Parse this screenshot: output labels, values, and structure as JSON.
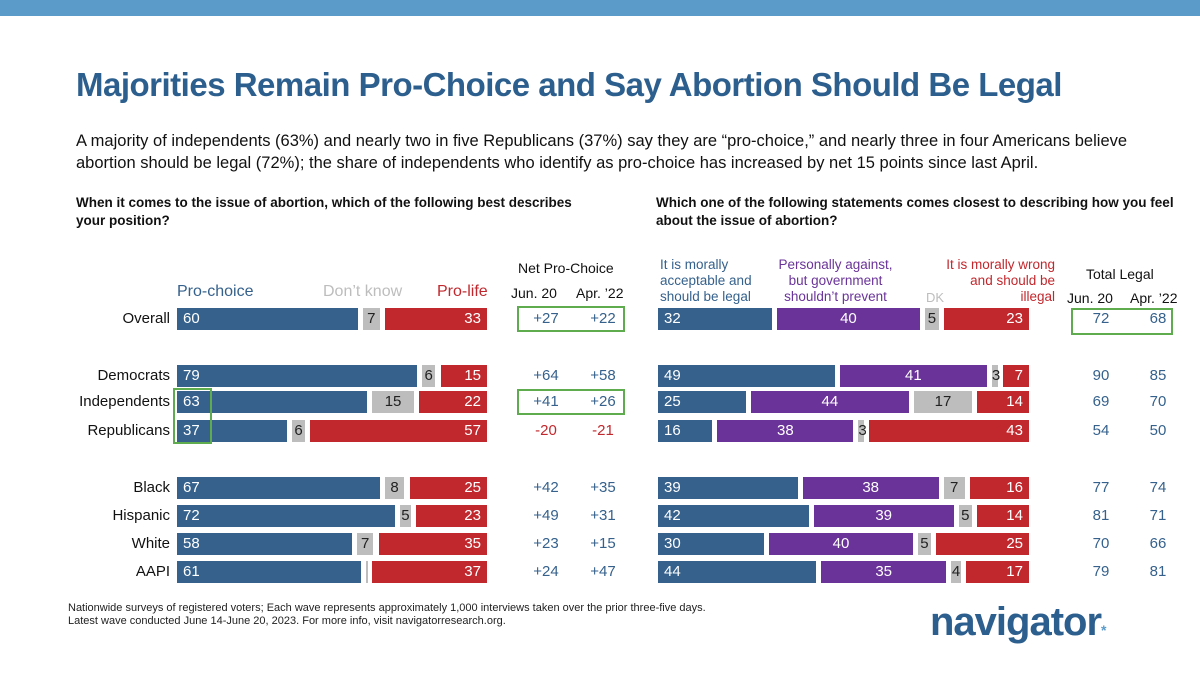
{
  "title": "Majorities Remain Pro-Choice and Say Abortion Should Be Legal",
  "subtitle": "A majority of independents (63%) and nearly two in five Republicans (37%) say they are “pro-choice,” and nearly three in four Americans believe abortion should be legal (72%); the share of independents who identify as pro-choice has increased by net 15 points since last April.",
  "colors": {
    "blue": "#35618c",
    "gray": "#bdbdbd",
    "red": "#c0282d",
    "purple": "#6a3399",
    "green_highlight": "#5fac4e",
    "title": "#2d5f8e",
    "topbar": "#5b9bc9"
  },
  "chart_data": [
    {
      "type": "bar",
      "stacked": true,
      "orientation": "horizontal",
      "question": "When it comes to the issue of abortion, which of the following best describes your position?",
      "legend": [
        "Pro-choice",
        "Don’t know",
        "Pro-life"
      ],
      "net_header": "Net Pro-Choice",
      "net_columns": [
        "Jun. 20",
        "Apr. ’22"
      ],
      "categories": [
        "Overall",
        "Democrats",
        "Independents",
        "Republicans",
        "Black",
        "Hispanic",
        "White",
        "AAPI"
      ],
      "series": [
        {
          "name": "Pro-choice",
          "values": [
            60,
            79,
            63,
            37,
            67,
            72,
            58,
            61
          ]
        },
        {
          "name": "Don’t know",
          "values": [
            7,
            6,
            15,
            6,
            8,
            5,
            7,
            2
          ]
        },
        {
          "name": "Pro-life",
          "values": [
            33,
            15,
            22,
            57,
            25,
            23,
            35,
            37
          ]
        }
      ],
      "net": {
        "jun20": [
          "+27",
          "+64",
          "+41",
          "-20",
          "+42",
          "+49",
          "+23",
          "+24"
        ],
        "apr22": [
          "+22",
          "+58",
          "+26",
          "-21",
          "+35",
          "+31",
          "+15",
          "+47"
        ]
      }
    },
    {
      "type": "bar",
      "stacked": true,
      "orientation": "horizontal",
      "question": "Which one of the following statements comes closest to describing how you feel about the issue of abortion?",
      "legend": [
        "It is morally acceptable and should be legal",
        "Personally against, but government shouldn’t prevent",
        "DK",
        "It is morally wrong and should be illegal"
      ],
      "total_header": "Total Legal",
      "total_columns": [
        "Jun. 20",
        "Apr. ’22"
      ],
      "categories": [
        "Overall",
        "Democrats",
        "Independents",
        "Republicans",
        "Black",
        "Hispanic",
        "White",
        "AAPI"
      ],
      "series": [
        {
          "name": "It is morally acceptable and should be legal",
          "values": [
            32,
            49,
            25,
            16,
            39,
            42,
            30,
            44
          ]
        },
        {
          "name": "Personally against, but government shouldn’t prevent",
          "values": [
            40,
            41,
            44,
            38,
            38,
            39,
            40,
            35
          ]
        },
        {
          "name": "DK",
          "values": [
            5,
            3,
            17,
            3,
            7,
            5,
            5,
            4
          ]
        },
        {
          "name": "It is morally wrong and should be illegal",
          "values": [
            23,
            7,
            14,
            43,
            16,
            14,
            25,
            17
          ]
        }
      ],
      "total": {
        "jun20": [
          "72",
          "90",
          "69",
          "54",
          "77",
          "81",
          "70",
          "79"
        ],
        "apr22": [
          "68",
          "85",
          "70",
          "50",
          "74",
          "71",
          "66",
          "81"
        ]
      }
    }
  ],
  "footer": [
    "Nationwide surveys of registered voters; Each wave represents approximately 1,000 interviews taken over the prior three-five days.",
    "Latest wave conducted June 14-June 20, 2023. For more info, visit navigatorresearch.org."
  ],
  "logo": "navigator"
}
